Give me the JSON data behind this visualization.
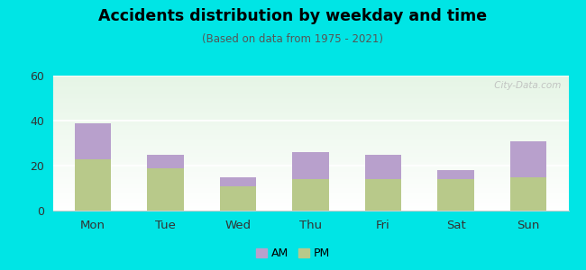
{
  "categories": [
    "Mon",
    "Tue",
    "Wed",
    "Thu",
    "Fri",
    "Sat",
    "Sun"
  ],
  "pm_values": [
    23,
    19,
    11,
    14,
    14,
    14,
    15
  ],
  "am_values": [
    16,
    6,
    4,
    12,
    11,
    4,
    16
  ],
  "am_color": "#b8a0cc",
  "pm_color": "#b8c98a",
  "title": "Accidents distribution by weekday and time",
  "subtitle": "(Based on data from 1975 - 2021)",
  "ylim": [
    0,
    60
  ],
  "yticks": [
    0,
    20,
    40,
    60
  ],
  "background_color": "#00e5e5",
  "bar_width": 0.5,
  "watermark": " City-Data.com"
}
